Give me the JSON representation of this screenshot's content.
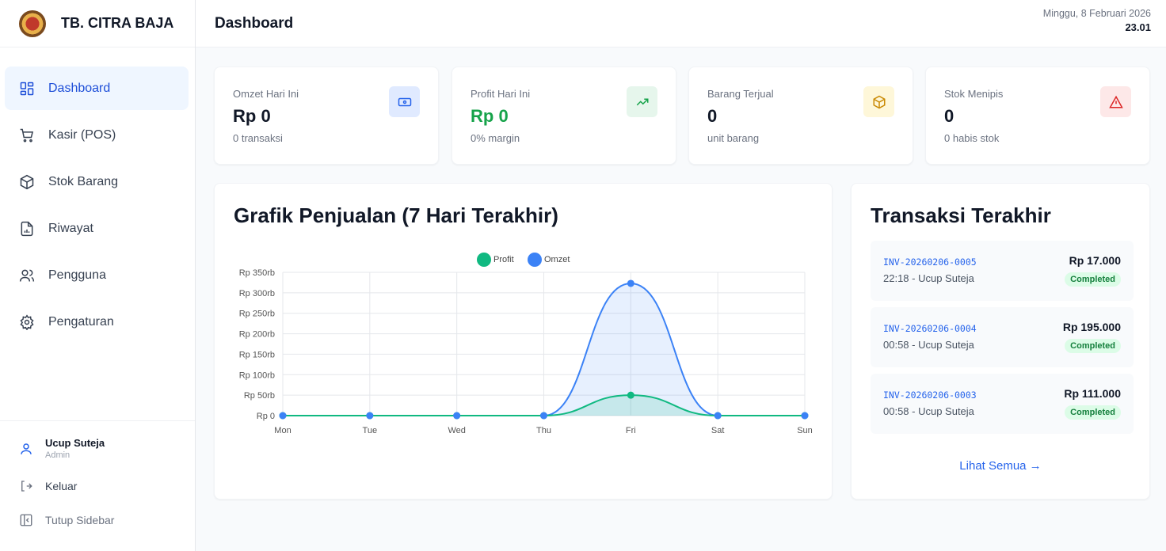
{
  "brand": {
    "name": "TB. CITRA BAJA"
  },
  "sidebar": {
    "items": [
      {
        "label": "Dashboard",
        "icon": "dashboard-icon",
        "active": true
      },
      {
        "label": "Kasir (POS)",
        "icon": "cart-icon"
      },
      {
        "label": "Stok Barang",
        "icon": "box-icon"
      },
      {
        "label": "Riwayat",
        "icon": "report-icon"
      },
      {
        "label": "Pengguna",
        "icon": "users-icon"
      },
      {
        "label": "Pengaturan",
        "icon": "gear-icon"
      }
    ],
    "user": {
      "name": "Ucup Suteja",
      "role": "Admin"
    },
    "logout_label": "Keluar",
    "collapse_label": "Tutup Sidebar"
  },
  "header": {
    "title": "Dashboard",
    "date": "Minggu, 8 Februari 2026",
    "time": "23.01"
  },
  "stats": [
    {
      "label": "Omzet Hari Ini",
      "value": "Rp 0",
      "sub": "0 transaksi",
      "icon": "money-icon",
      "color": "#2563eb",
      "bg": "#e0eaff"
    },
    {
      "label": "Profit Hari Ini",
      "value": "Rp 0",
      "sub": "0% margin",
      "icon": "trending-up-icon",
      "color": "#16a34a",
      "bg": "#e6f6ec"
    },
    {
      "label": "Barang Terjual",
      "value": "0",
      "sub": "unit barang",
      "icon": "package-icon",
      "color": "#ca8a04",
      "bg": "#fef7d9"
    },
    {
      "label": "Stok Menipis",
      "value": "0",
      "sub": "0 habis stok",
      "icon": "alert-icon",
      "color": "#dc2626",
      "bg": "#fde8e8"
    }
  ],
  "chart_data": {
    "type": "line",
    "title": "Grafik Penjualan (7 Hari Terakhir)",
    "categories": [
      "Mon",
      "Tue",
      "Wed",
      "Thu",
      "Fri",
      "Sat",
      "Sun"
    ],
    "series": [
      {
        "name": "Profit",
        "values": [
          0,
          0,
          0,
          0,
          50000,
          0,
          0
        ],
        "color": "#10b981"
      },
      {
        "name": "Omzet",
        "values": [
          0,
          0,
          0,
          0,
          323000,
          0,
          0
        ],
        "color": "#3b82f6"
      }
    ],
    "y_ticks": [
      "Rp 0",
      "Rp 50rb",
      "Rp 100rb",
      "Rp 150rb",
      "Rp 200rb",
      "Rp 250rb",
      "Rp 300rb",
      "Rp 350rb"
    ],
    "ylim": [
      0,
      350000
    ],
    "legend": "top-center",
    "grid": true
  },
  "transactions": {
    "title": "Transaksi Terakhir",
    "items": [
      {
        "invoice": "INV-20260206-0005",
        "meta": "22:18 - Ucup Suteja",
        "amount": "Rp 17.000",
        "status": "Completed"
      },
      {
        "invoice": "INV-20260206-0004",
        "meta": "00:58 - Ucup Suteja",
        "amount": "Rp 195.000",
        "status": "Completed"
      },
      {
        "invoice": "INV-20260206-0003",
        "meta": "00:58 - Ucup Suteja",
        "amount": "Rp 111.000",
        "status": "Completed"
      }
    ],
    "see_all": "Lihat Semua →"
  }
}
